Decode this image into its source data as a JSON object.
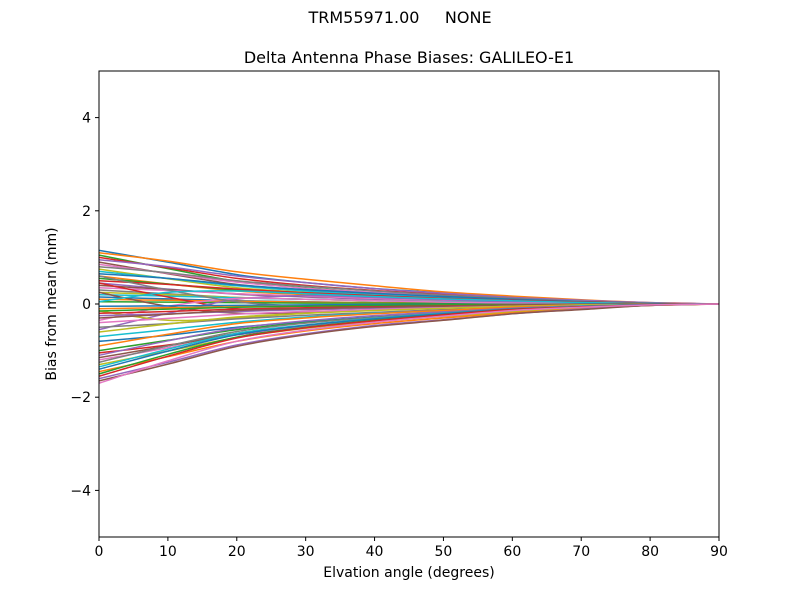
{
  "figure": {
    "suptitle": "TRM55971.00     NONE"
  },
  "chart_data": {
    "type": "line",
    "title": "Delta Antenna Phase Biases: GALILEO-E1",
    "xlabel": "Elvation angle (degrees)",
    "ylabel": "Bias from mean (mm)",
    "xlim": [
      0,
      90
    ],
    "ylim": [
      -5,
      5
    ],
    "xticks": [
      0,
      10,
      20,
      30,
      40,
      50,
      60,
      70,
      80,
      90
    ],
    "yticks": [
      -4,
      -2,
      0,
      2,
      4
    ],
    "grid": false,
    "legend": "none",
    "palette": [
      "#1f77b4",
      "#ff7f0e",
      "#2ca02c",
      "#d62728",
      "#9467bd",
      "#8c564b",
      "#e377c2",
      "#7f7f7f",
      "#bcbd22",
      "#17becf"
    ],
    "x": [
      0,
      10,
      20,
      30,
      40,
      50,
      60,
      70,
      80,
      90
    ],
    "series": [
      {
        "values": [
          1.15,
          0.9,
          0.63,
          0.46,
          0.33,
          0.24,
          0.15,
          0.08,
          0.02,
          0.0
        ]
      },
      {
        "values": [
          1.1,
          0.92,
          0.69,
          0.53,
          0.39,
          0.26,
          0.17,
          0.09,
          0.03,
          0.0
        ]
      },
      {
        "values": [
          1.05,
          0.76,
          0.49,
          0.35,
          0.24,
          0.16,
          0.08,
          0.04,
          0.01,
          0.0
        ]
      },
      {
        "values": [
          1.0,
          0.78,
          0.55,
          0.4,
          0.29,
          0.21,
          0.13,
          0.07,
          0.02,
          0.0
        ]
      },
      {
        "values": [
          0.95,
          0.8,
          0.6,
          0.46,
          0.33,
          0.23,
          0.14,
          0.08,
          0.03,
          0.0
        ]
      },
      {
        "values": [
          0.9,
          0.65,
          0.42,
          0.3,
          0.21,
          0.14,
          0.07,
          0.04,
          0.01,
          0.0
        ]
      },
      {
        "values": [
          0.85,
          0.66,
          0.47,
          0.34,
          0.25,
          0.18,
          0.11,
          0.06,
          0.02,
          0.0
        ]
      },
      {
        "values": [
          0.8,
          0.67,
          0.5,
          0.38,
          0.28,
          0.19,
          0.12,
          0.06,
          0.02,
          0.0
        ]
      },
      {
        "values": [
          0.75,
          0.54,
          0.35,
          0.25,
          0.17,
          0.11,
          0.06,
          0.03,
          0.01,
          0.0
        ]
      },
      {
        "values": [
          0.7,
          0.55,
          0.39,
          0.28,
          0.2,
          0.15,
          0.09,
          0.05,
          0.01,
          0.0
        ]
      },
      {
        "values": [
          0.65,
          0.55,
          0.41,
          0.31,
          0.23,
          0.16,
          0.1,
          0.05,
          0.02,
          0.0
        ]
      },
      {
        "values": [
          0.6,
          0.43,
          0.28,
          0.2,
          0.14,
          0.09,
          0.05,
          0.02,
          0.01,
          0.0
        ]
      },
      {
        "values": [
          0.55,
          0.43,
          0.3,
          0.22,
          0.16,
          0.12,
          0.07,
          0.04,
          0.01,
          0.0
        ]
      },
      {
        "values": [
          0.5,
          0.42,
          0.32,
          0.24,
          0.18,
          0.12,
          0.08,
          0.04,
          0.02,
          0.0
        ]
      },
      {
        "values": [
          0.45,
          0.32,
          0.21,
          0.15,
          0.1,
          0.07,
          0.04,
          0.02,
          0.0,
          0.0
        ]
      },
      {
        "values": [
          0.4,
          0.31,
          0.22,
          0.16,
          0.12,
          0.08,
          0.05,
          0.03,
          0.01,
          0.0
        ]
      },
      {
        "values": [
          0.35,
          0.29,
          0.22,
          0.17,
          0.12,
          0.08,
          0.05,
          0.03,
          0.01,
          0.0
        ]
      },
      {
        "values": [
          0.3,
          0.22,
          0.14,
          0.1,
          0.07,
          0.05,
          0.02,
          0.01,
          0.0,
          0.0
        ]
      },
      {
        "values": [
          0.25,
          0.2,
          0.14,
          0.1,
          0.07,
          0.05,
          0.03,
          0.02,
          0.01,
          0.0
        ]
      },
      {
        "values": [
          0.2,
          0.17,
          0.13,
          0.1,
          0.07,
          0.05,
          0.03,
          0.02,
          0.01,
          0.0
        ]
      },
      {
        "values": [
          0.15,
          0.11,
          0.07,
          0.05,
          0.03,
          0.02,
          0.01,
          0.01,
          0.0,
          0.0
        ]
      },
      {
        "values": [
          0.1,
          0.08,
          0.06,
          0.04,
          0.03,
          0.02,
          0.01,
          0.01,
          0.0,
          0.0
        ]
      },
      {
        "values": [
          0.05,
          0.04,
          0.03,
          0.02,
          0.02,
          0.01,
          0.01,
          0.0,
          0.0,
          0.0
        ]
      },
      {
        "values": [
          0.45,
          0.15,
          -0.1,
          -0.12,
          -0.08,
          -0.05,
          -0.03,
          -0.01,
          0.0,
          0.0
        ]
      },
      {
        "values": [
          -0.55,
          -0.2,
          0.1,
          0.18,
          0.14,
          0.09,
          0.05,
          0.02,
          0.01,
          0.0
        ]
      },
      {
        "values": [
          0.25,
          -0.05,
          -0.2,
          -0.18,
          -0.12,
          -0.08,
          -0.04,
          -0.02,
          -0.01,
          0.0
        ]
      },
      {
        "values": [
          -0.35,
          -0.05,
          0.12,
          0.1,
          0.07,
          0.04,
          0.02,
          0.01,
          0.0,
          0.0
        ]
      },
      {
        "values": [
          0.6,
          0.3,
          0.05,
          -0.05,
          -0.06,
          -0.04,
          -0.02,
          -0.01,
          0.0,
          0.0
        ]
      },
      {
        "values": [
          -0.15,
          -0.35,
          -0.3,
          -0.2,
          -0.12,
          -0.07,
          -0.04,
          -0.02,
          -0.01,
          0.0
        ]
      },
      {
        "values": [
          0.05,
          0.25,
          0.28,
          0.22,
          0.16,
          0.11,
          0.07,
          0.03,
          0.01,
          0.0
        ]
      },
      {
        "values": [
          -0.05,
          -0.04,
          -0.03,
          -0.02,
          -0.01,
          -0.01,
          -0.01,
          0.0,
          0.0,
          0.0
        ]
      },
      {
        "values": [
          -0.1,
          -0.08,
          -0.06,
          -0.05,
          -0.04,
          -0.02,
          -0.02,
          -0.01,
          0.0,
          0.0
        ]
      },
      {
        "values": [
          -0.15,
          -0.11,
          -0.07,
          -0.05,
          -0.03,
          -0.02,
          -0.01,
          -0.01,
          0.0,
          0.0
        ]
      },
      {
        "values": [
          -0.2,
          -0.16,
          -0.11,
          -0.08,
          -0.06,
          -0.04,
          -0.03,
          -0.01,
          0.0,
          0.0
        ]
      },
      {
        "values": [
          -0.25,
          -0.21,
          -0.16,
          -0.12,
          -0.09,
          -0.06,
          -0.04,
          -0.02,
          -0.01,
          0.0
        ]
      },
      {
        "values": [
          -0.3,
          -0.22,
          -0.14,
          -0.1,
          -0.07,
          -0.05,
          -0.02,
          -0.01,
          0.0,
          0.0
        ]
      },
      {
        "values": [
          -0.4,
          -0.31,
          -0.22,
          -0.16,
          -0.12,
          -0.08,
          -0.05,
          -0.03,
          -0.01,
          0.0
        ]
      },
      {
        "values": [
          -0.5,
          -0.42,
          -0.32,
          -0.24,
          -0.18,
          -0.12,
          -0.08,
          -0.04,
          -0.02,
          0.0
        ]
      },
      {
        "values": [
          -0.6,
          -0.43,
          -0.28,
          -0.2,
          -0.14,
          -0.09,
          -0.05,
          -0.02,
          -0.01,
          0.0
        ]
      },
      {
        "values": [
          -0.7,
          -0.55,
          -0.39,
          -0.28,
          -0.2,
          -0.15,
          -0.09,
          -0.05,
          -0.01,
          0.0
        ]
      },
      {
        "values": [
          -0.8,
          -0.67,
          -0.5,
          -0.38,
          -0.28,
          -0.19,
          -0.12,
          -0.06,
          -0.02,
          0.0
        ]
      },
      {
        "values": [
          -0.9,
          -0.65,
          -0.42,
          -0.3,
          -0.21,
          -0.14,
          -0.07,
          -0.04,
          -0.01,
          0.0
        ]
      },
      {
        "values": [
          -1.0,
          -0.78,
          -0.55,
          -0.4,
          -0.29,
          -0.21,
          -0.13,
          -0.07,
          -0.02,
          0.0
        ]
      },
      {
        "values": [
          -1.05,
          -0.88,
          -0.66,
          -0.5,
          -0.37,
          -0.25,
          -0.16,
          -0.08,
          -0.03,
          0.0
        ]
      },
      {
        "values": [
          -1.1,
          -0.79,
          -0.52,
          -0.36,
          -0.25,
          -0.17,
          -0.09,
          -0.04,
          -0.01,
          0.0
        ]
      },
      {
        "values": [
          -1.15,
          -0.9,
          -0.63,
          -0.46,
          -0.33,
          -0.24,
          -0.15,
          -0.08,
          -0.02,
          0.0
        ]
      },
      {
        "values": [
          -1.2,
          -0.94,
          -0.66,
          -0.48,
          -0.35,
          -0.25,
          -0.16,
          -0.08,
          -0.02,
          0.0
        ]
      },
      {
        "values": [
          -1.25,
          -0.9,
          -0.59,
          -0.41,
          -0.29,
          -0.19,
          -0.1,
          -0.05,
          -0.01,
          0.0
        ]
      },
      {
        "values": [
          -1.3,
          -1.01,
          -0.72,
          -0.52,
          -0.38,
          -0.27,
          -0.17,
          -0.09,
          -0.03,
          0.0
        ]
      },
      {
        "values": [
          -1.35,
          -0.97,
          -0.63,
          -0.45,
          -0.31,
          -0.2,
          -0.11,
          -0.05,
          -0.01,
          0.0
        ]
      },
      {
        "values": [
          -1.4,
          -1.01,
          -0.66,
          -0.46,
          -0.32,
          -0.21,
          -0.11,
          -0.06,
          -0.01,
          0.0
        ]
      },
      {
        "values": [
          -1.45,
          -1.13,
          -0.8,
          -0.58,
          -0.42,
          -0.3,
          -0.19,
          -0.1,
          -0.03,
          0.0
        ]
      },
      {
        "values": [
          -1.5,
          -1.08,
          -0.71,
          -0.5,
          -0.35,
          -0.23,
          -0.12,
          -0.06,
          -0.02,
          0.0
        ]
      },
      {
        "values": [
          -1.55,
          -1.12,
          -0.73,
          -0.51,
          -0.36,
          -0.23,
          -0.12,
          -0.06,
          -0.02,
          0.0
        ]
      },
      {
        "values": [
          -1.6,
          -1.25,
          -0.88,
          -0.64,
          -0.46,
          -0.34,
          -0.21,
          -0.11,
          -0.03,
          0.0
        ]
      },
      {
        "values": [
          -1.65,
          -1.29,
          -0.91,
          -0.66,
          -0.48,
          -0.35,
          -0.21,
          -0.12,
          -0.03,
          0.0
        ]
      },
      {
        "values": [
          -1.7,
          -1.22,
          -0.8,
          -0.56,
          -0.39,
          -0.26,
          -0.14,
          -0.07,
          -0.02,
          0.0
        ]
      }
    ]
  }
}
